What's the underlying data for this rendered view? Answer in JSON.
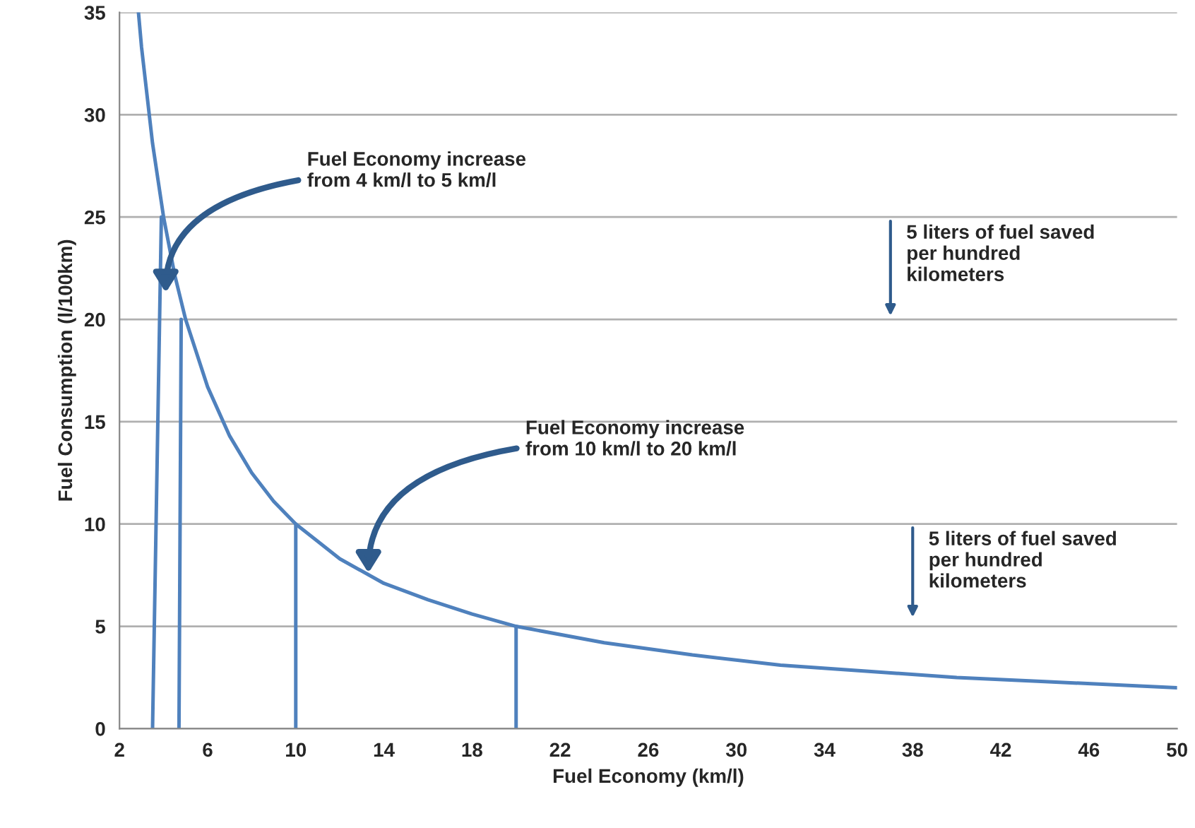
{
  "chart_data": {
    "type": "line",
    "xlabel": "Fuel Economy (km/l)",
    "ylabel": "Fuel Consumption (l/100km)",
    "series": [
      {
        "color": "#4f81bd",
        "x": [
          2.86,
          3,
          3.5,
          4,
          4.5,
          5,
          6,
          7,
          8,
          9,
          10,
          12,
          14,
          16,
          18,
          20,
          24,
          28,
          32,
          36,
          40,
          44,
          50
        ],
        "values": [
          35,
          33.3,
          28.6,
          25,
          22.2,
          20,
          16.7,
          14.3,
          12.5,
          11.1,
          10,
          8.3,
          7.1,
          6.3,
          5.6,
          5,
          4.2,
          3.6,
          3.1,
          2.8,
          2.5,
          2.3,
          2
        ]
      },
      {
        "color": "#4f81bd",
        "x": [
          3.5,
          3.9
        ],
        "values": [
          0,
          25
        ]
      },
      {
        "color": "#4f81bd",
        "x": [
          4.7,
          4.8
        ],
        "values": [
          0,
          20
        ]
      },
      {
        "color": "#4f81bd",
        "x": [
          10,
          10
        ],
        "values": [
          0,
          10
        ]
      },
      {
        "color": "#4f81bd",
        "x": [
          20,
          20
        ],
        "values": [
          0,
          5
        ]
      }
    ],
    "xlim": [
      2,
      50
    ],
    "xticks": [
      2,
      6,
      10,
      14,
      18,
      22,
      26,
      30,
      34,
      38,
      42,
      46,
      50
    ],
    "ylim": [
      0,
      35
    ],
    "yticks": [
      0,
      5,
      10,
      15,
      20,
      25,
      30,
      35
    ],
    "grid": "y",
    "annotations": [
      {
        "text": "Fuel Economy increase\nfrom 4 km/l to 5 km/l",
        "x": 4.1,
        "y": 21.3
      },
      {
        "text": "Fuel Economy increase\nfrom 10 km/l to 20 km/l",
        "x": 13.3,
        "y": 7.6
      },
      "5 liters of fuel saved\nper hundred\nkilometers",
      "5 liters of fuel saved\nper hundred\nkilometers"
    ]
  }
}
